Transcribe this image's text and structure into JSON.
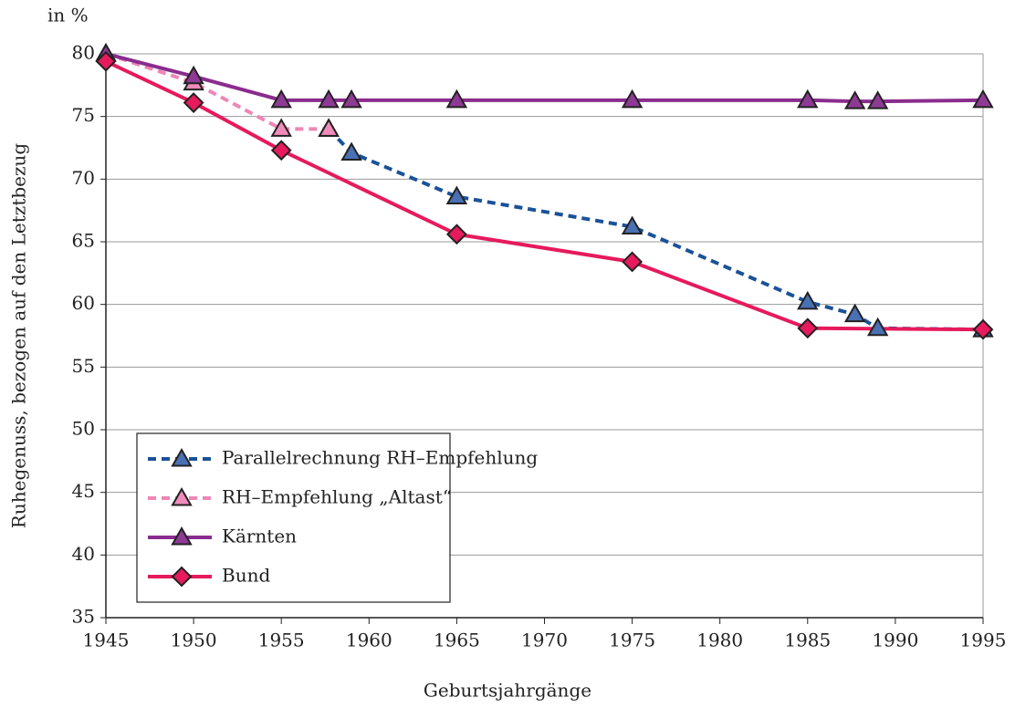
{
  "chart_data": {
    "type": "line",
    "y_unit_label": "in %",
    "ylabel": "Ruhegenuss, bezogen auf den Letztbezug",
    "xlabel": "Geburtsjahrgänge",
    "xlim": [
      1945,
      1995
    ],
    "xticks": [
      1945,
      1950,
      1955,
      1960,
      1965,
      1970,
      1975,
      1980,
      1985,
      1990,
      1995
    ],
    "ylim": [
      35,
      80
    ],
    "yticks": [
      35,
      40,
      45,
      50,
      55,
      60,
      65,
      70,
      75,
      80
    ],
    "grid": true,
    "legend": "lower left",
    "series": [
      {
        "name": "Parallelrechnung RH–Empfehlung",
        "color": "#1a5299",
        "marker_fill": "#4a70b4",
        "marker": "triangle",
        "dashed": true,
        "x": [
          1957.7,
          1959,
          1965,
          1975,
          1985,
          1987.7,
          1989,
          1995
        ],
        "values": [
          74,
          72.1,
          68.6,
          66.2,
          60.2,
          59.2,
          58.1,
          58
        ]
      },
      {
        "name": "RH–Empfehlung „Altast“",
        "color": "#ee86b6",
        "marker_fill": "#f08cbb",
        "marker": "triangle",
        "dashed": true,
        "x": [
          1945,
          1950,
          1955,
          1957.7
        ],
        "values": [
          80,
          77.7,
          74,
          74
        ]
      },
      {
        "name": "Kärnten",
        "color": "#8a2c8e",
        "marker_fill": "#8e3a95",
        "marker": "triangle",
        "dashed": false,
        "x": [
          1945,
          1950,
          1955,
          1957.7,
          1959,
          1965,
          1975,
          1985,
          1987.7,
          1989,
          1995
        ],
        "values": [
          80,
          78.2,
          76.3,
          76.3,
          76.3,
          76.3,
          76.3,
          76.3,
          76.2,
          76.2,
          76.3
        ]
      },
      {
        "name": "Bund",
        "color": "#e61a5c",
        "marker_fill": "#e61a5c",
        "marker": "diamond",
        "dashed": false,
        "x": [
          1945,
          1950,
          1955,
          1965,
          1975,
          1985,
          1995
        ],
        "values": [
          79.4,
          76.1,
          72.3,
          65.6,
          63.4,
          58.1,
          58
        ]
      }
    ]
  }
}
